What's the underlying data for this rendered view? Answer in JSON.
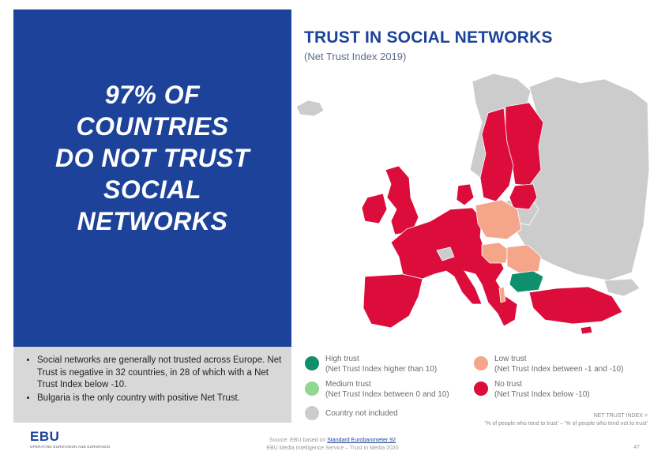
{
  "headline": [
    "97% OF",
    "COUNTRIES",
    "DO NOT TRUST",
    "SOCIAL",
    "NETWORKS"
  ],
  "notes": [
    "Social networks are generally not trusted across Europe. Net Trust is negative in 32 countries, in 28 of which with a Net Trust Index below -10.",
    "Bulgaria is the only country with positive Net Trust."
  ],
  "title": "TRUST IN SOCIAL NETWORKS",
  "subtitle": "(Net Trust Index 2019)",
  "legend": {
    "high": {
      "label": "High trust",
      "desc": "(Net Trust Index higher than 10)",
      "color": "#0f8f6c"
    },
    "medium": {
      "label": "Medium trust",
      "desc": "(Net Trust Index between 0 and 10)",
      "color": "#93d68f"
    },
    "low": {
      "label": "Low trust",
      "desc": "(Net Trust Index between -1 and -10)",
      "color": "#f5a68a"
    },
    "no": {
      "label": "No trust",
      "desc": "(Net Trust Index below -10)",
      "color": "#dc0c3b"
    },
    "not_included": {
      "label": "Country not included",
      "color": "#cccccc"
    }
  },
  "formula": {
    "line1": "NET TRUST INDEX =",
    "line2": "'% of people who tend to trust' – '% of people who tend not to trust'"
  },
  "map_colors": {
    "no_trust": "#dc0c3b",
    "low_trust": "#f5a68a",
    "high_trust": "#0f8f6c",
    "not_included": "#cccccc",
    "border": "#ffffff"
  },
  "footer": {
    "logo": "EBU",
    "tagline": "OPERATING EUROVISION AND EURORADIO",
    "source_prefix": "Source: EBU based on ",
    "source_link": "Standard Eurobarometer 92",
    "service": "EBU Media Intelligence Service – Trust in Media 2020",
    "page": "47"
  }
}
